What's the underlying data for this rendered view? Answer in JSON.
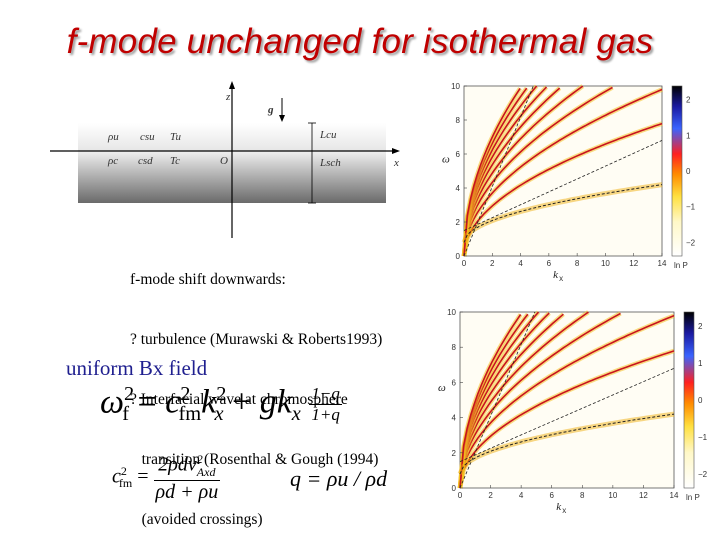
{
  "slide": {
    "title": "f-mode unchanged for isothermal gas",
    "notes": [
      "f-mode shift downwards:",
      "? turbulence (Murawski & Roberts1993)",
      "? Interfacial wave at chromosphere",
      "   transition (Rosenthal & Gough (1994)",
      "   (avoided crossings)"
    ],
    "field_label": "uniform Bx field"
  },
  "diagram": {
    "axis_z": "z",
    "axis_x": "x",
    "gravity": "g",
    "origin": "O",
    "upper": {
      "rho": "ρu",
      "c": "csu",
      "T": "Tu",
      "h": "Lcu"
    },
    "lower": {
      "rho": "ρc",
      "c": "csd",
      "T": "Tc",
      "h": "Lsch"
    }
  },
  "equations": {
    "omega_lhs": "ω",
    "omega_sub": "f",
    "c_sym": "c",
    "c_sub": "fm",
    "k": "k",
    "k_sub": "x",
    "g": "g",
    "num": "1−q",
    "den": "1+q",
    "cfm_num": "2ρdv",
    "cfm_num_sub": "Axd",
    "cfm_den": "ρd + ρu",
    "q_expr": "q = ρu / ρd"
  },
  "plots": [
    {
      "id": "top",
      "x_label": "k",
      "x_label_sub": "x",
      "y_label": "ω",
      "x_ticks": [
        "0",
        "2",
        "4",
        "6",
        "8",
        "10",
        "12",
        "14"
      ],
      "y_ticks": [
        "0",
        "2",
        "4",
        "6",
        "8",
        "10"
      ],
      "cbar_ticks": [
        "2",
        "1",
        "0",
        "−1",
        "−2"
      ],
      "cbar_unit": "ln P"
    },
    {
      "id": "bottom",
      "x_label": "k",
      "x_label_sub": "x",
      "y_label": "ω",
      "x_ticks": [
        "0",
        "2",
        "4",
        "6",
        "8",
        "10",
        "12",
        "14"
      ],
      "y_ticks": [
        "0",
        "2",
        "4",
        "6",
        "8",
        "10"
      ],
      "cbar_ticks": [
        "2",
        "1",
        "0",
        "−1",
        "−2"
      ],
      "cbar_unit": "ln P"
    }
  ]
}
